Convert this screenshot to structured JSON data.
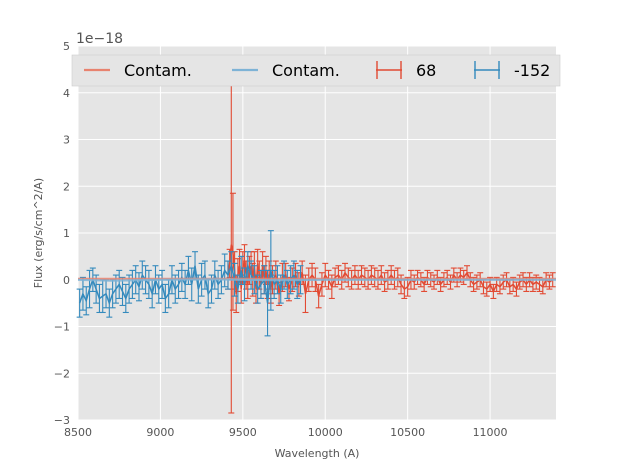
{
  "chart_data": {
    "type": "line",
    "title": "",
    "xlabel": "Wavelength (A)",
    "ylabel": "Flux (erg/s/cm^2/A)",
    "y_offset_label": "1e−18",
    "xlim": [
      8500,
      11400
    ],
    "ylim": [
      -3,
      5
    ],
    "x_ticks": [
      8500,
      9000,
      9500,
      10000,
      10500,
      11000
    ],
    "y_ticks": [
      -3,
      -2,
      -1,
      0,
      1,
      2,
      3,
      4,
      5
    ],
    "x_tick_labels": [
      "8500",
      "9000",
      "9500",
      "10000",
      "10500",
      "11000"
    ],
    "y_tick_labels": [
      "−3",
      "−2",
      "−1",
      "0",
      "1",
      "2",
      "3",
      "4",
      "5"
    ],
    "grid": true,
    "legend_position": "top",
    "legend": [
      {
        "label": "Contam.",
        "kind": "line",
        "color": "#E8836F"
      },
      {
        "label": "Contam.",
        "kind": "line",
        "color": "#7EB3D6"
      },
      {
        "label": "68",
        "kind": "errorbar",
        "color": "#E24A33"
      },
      {
        "label": "-152",
        "kind": "errorbar",
        "color": "#348ABD"
      }
    ],
    "series": [
      {
        "name": "Contam.",
        "kind": "line",
        "color": "#E8836F",
        "x": [
          8500,
          9000,
          9400,
          9500,
          10000,
          10500,
          11000,
          11400
        ],
        "y": [
          0.02,
          0.02,
          0.02,
          0.02,
          0.02,
          0.02,
          0.02,
          0.02
        ]
      },
      {
        "name": "Contam.",
        "kind": "line",
        "color": "#7EB3D6",
        "x": [
          8500,
          8700,
          9000,
          9300,
          9500,
          9700,
          10000,
          10500,
          11000,
          11400
        ],
        "y": [
          0.0,
          -0.02,
          0.0,
          0.01,
          0.0,
          -0.01,
          0.0,
          0.0,
          0.0,
          0.0
        ]
      },
      {
        "name": "68",
        "kind": "errorbar",
        "color": "#E24A33",
        "x": [
          9410,
          9420,
          9430,
          9440,
          9450,
          9460,
          9470,
          9480,
          9490,
          9500,
          9510,
          9520,
          9530,
          9540,
          9550,
          9560,
          9570,
          9580,
          9590,
          9600,
          9610,
          9620,
          9630,
          9640,
          9650,
          9660,
          9670,
          9680,
          9700,
          9720,
          9740,
          9760,
          9780,
          9800,
          9820,
          9840,
          9860,
          9880,
          9900,
          9920,
          9940,
          9960,
          9980,
          10000,
          10020,
          10040,
          10060,
          10080,
          10100,
          10120,
          10140,
          10160,
          10180,
          10200,
          10220,
          10240,
          10260,
          10280,
          10300,
          10320,
          10340,
          10360,
          10380,
          10400,
          10420,
          10440,
          10460,
          10480,
          10500,
          10520,
          10540,
          10560,
          10580,
          10600,
          10620,
          10640,
          10660,
          10680,
          10700,
          10720,
          10740,
          10760,
          10780,
          10800,
          10820,
          10840,
          10860,
          10880,
          10900,
          10920,
          10940,
          10960,
          10980,
          11000,
          11020,
          11040,
          11060,
          11080,
          11100,
          11120,
          11140,
          11160,
          11180,
          11200,
          11220,
          11240,
          11260,
          11280,
          11300,
          11320,
          11340,
          11360,
          11380
        ],
        "y": [
          0.1,
          0.35,
          0.75,
          0.6,
          0.2,
          -0.3,
          0.1,
          0.3,
          -0.2,
          0.25,
          0.4,
          0.1,
          -0.1,
          0.2,
          0.3,
          0.0,
          0.3,
          -0.2,
          0.35,
          0.1,
          -0.1,
          0.3,
          0.0,
          0.2,
          -0.1,
          0.1,
          -0.2,
          0.0,
          0.1,
          -0.3,
          0.05,
          0.1,
          -0.2,
          0.0,
          0.1,
          -0.1,
          0.15,
          -0.3,
          0.0,
          0.1,
          0.0,
          -0.35,
          -0.1,
          0.1,
          0.0,
          -0.15,
          0.05,
          0.1,
          0.0,
          0.15,
          0.05,
          0.0,
          0.1,
          0.0,
          0.1,
          0.05,
          0.0,
          0.1,
          0.05,
          0.0,
          0.1,
          -0.05,
          0.0,
          0.1,
          0.0,
          0.05,
          -0.1,
          -0.2,
          -0.15,
          0.0,
          -0.05,
          0.05,
          0.0,
          -0.1,
          0.05,
          0.0,
          -0.05,
          0.05,
          -0.1,
          0.0,
          0.05,
          -0.05,
          0.1,
          0.0,
          0.1,
          0.05,
          0.15,
          0.0,
          -0.1,
          -0.05,
          0.0,
          -0.15,
          -0.2,
          -0.1,
          -0.25,
          -0.1,
          -0.15,
          -0.05,
          0.0,
          -0.15,
          -0.1,
          -0.2,
          -0.05,
          0.0,
          -0.1,
          0.0,
          -0.1,
          -0.05,
          -0.1,
          -0.15,
          0.0,
          -0.05,
          0.0
        ],
        "err": [
          0.3,
          0.3,
          3.6,
          1.25,
          0.4,
          0.4,
          0.35,
          0.35,
          0.3,
          0.35,
          0.35,
          0.3,
          0.3,
          0.3,
          0.3,
          0.35,
          0.3,
          0.3,
          0.3,
          0.3,
          0.3,
          0.3,
          0.3,
          0.3,
          0.3,
          0.3,
          0.3,
          0.3,
          0.3,
          0.25,
          0.3,
          0.25,
          0.25,
          0.25,
          0.25,
          0.25,
          0.25,
          0.4,
          0.25,
          0.25,
          0.25,
          0.25,
          0.25,
          0.25,
          0.2,
          0.25,
          0.2,
          0.2,
          0.2,
          0.2,
          0.2,
          0.2,
          0.2,
          0.2,
          0.2,
          0.2,
          0.2,
          0.2,
          0.2,
          0.2,
          0.2,
          0.2,
          0.2,
          0.2,
          0.2,
          0.2,
          0.2,
          0.2,
          0.2,
          0.2,
          0.15,
          0.15,
          0.15,
          0.15,
          0.15,
          0.15,
          0.15,
          0.15,
          0.15,
          0.15,
          0.15,
          0.15,
          0.15,
          0.15,
          0.15,
          0.15,
          0.15,
          0.15,
          0.15,
          0.15,
          0.15,
          0.15,
          0.15,
          0.15,
          0.15,
          0.15,
          0.15,
          0.15,
          0.15,
          0.15,
          0.15,
          0.15,
          0.15,
          0.15,
          0.15,
          0.15,
          0.15,
          0.15,
          0.15,
          0.15,
          0.15,
          0.15,
          0.15
        ]
      },
      {
        "name": "-152",
        "kind": "errorbar",
        "color": "#348ABD",
        "x": [
          8510,
          8530,
          8550,
          8570,
          8590,
          8610,
          8630,
          8650,
          8670,
          8690,
          8710,
          8730,
          8750,
          8770,
          8790,
          8810,
          8830,
          8850,
          8870,
          8890,
          8910,
          8930,
          8950,
          8970,
          8990,
          9010,
          9030,
          9050,
          9070,
          9090,
          9110,
          9130,
          9150,
          9170,
          9190,
          9210,
          9230,
          9250,
          9270,
          9290,
          9310,
          9330,
          9350,
          9370,
          9390,
          9410,
          9430,
          9450,
          9470,
          9490,
          9510,
          9530,
          9550,
          9570,
          9590,
          9610,
          9630,
          9650,
          9670,
          9690,
          9710,
          9730,
          9750,
          9770,
          9790,
          9810,
          9830,
          9850
        ],
        "y": [
          -0.5,
          -0.3,
          -0.45,
          -0.2,
          0.0,
          -0.2,
          -0.4,
          -0.35,
          -0.3,
          -0.5,
          -0.3,
          -0.2,
          -0.1,
          -0.25,
          -0.4,
          -0.2,
          -0.1,
          0.0,
          -0.15,
          0.1,
          0.0,
          -0.1,
          -0.3,
          0.0,
          -0.2,
          -0.1,
          -0.4,
          -0.3,
          0.0,
          -0.2,
          -0.1,
          0.05,
          -0.1,
          0.2,
          -0.1,
          0.3,
          -0.2,
          0.0,
          0.1,
          -0.3,
          -0.2,
          0.1,
          -0.1,
          0.0,
          0.2,
          0.1,
          0.3,
          0.0,
          -0.2,
          0.2,
          -0.1,
          0.3,
          0.1,
          0.0,
          -0.2,
          -0.1,
          0.0,
          -0.5,
          0.2,
          -0.1,
          0.0,
          -0.2,
          0.1,
          -0.1,
          0.0,
          0.1,
          -0.1,
          0.0
        ],
        "err": [
          0.3,
          0.35,
          0.3,
          0.4,
          0.25,
          0.3,
          0.3,
          0.35,
          0.3,
          0.3,
          0.3,
          0.3,
          0.3,
          0.3,
          0.3,
          0.3,
          0.3,
          0.3,
          0.3,
          0.3,
          0.3,
          0.3,
          0.3,
          0.3,
          0.3,
          0.3,
          0.3,
          0.3,
          0.3,
          0.3,
          0.3,
          0.3,
          0.3,
          0.3,
          0.35,
          0.3,
          0.3,
          0.35,
          0.3,
          0.3,
          0.3,
          0.3,
          0.3,
          0.3,
          0.35,
          0.3,
          0.3,
          0.35,
          0.3,
          0.3,
          0.35,
          0.3,
          0.3,
          0.3,
          0.3,
          0.3,
          0.3,
          0.7,
          0.85,
          0.3,
          0.3,
          0.3,
          0.3,
          0.3,
          0.3,
          0.3,
          0.3,
          0.3
        ]
      }
    ]
  }
}
